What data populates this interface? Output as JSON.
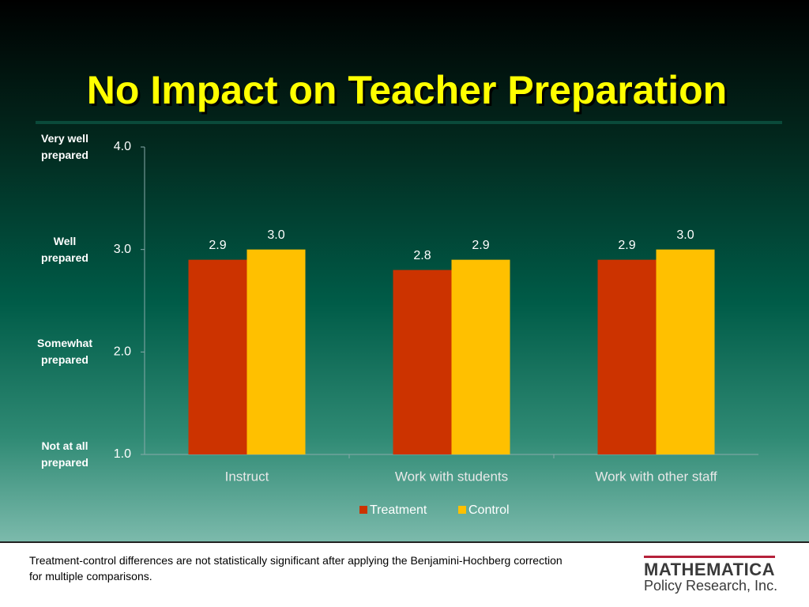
{
  "chart_data": {
    "type": "bar",
    "title": "No Impact on Teacher Preparation",
    "categories": [
      "Instruct",
      "Work with students",
      "Work with other staff"
    ],
    "series": [
      {
        "name": "Treatment",
        "color": "#cc3300",
        "values": [
          2.9,
          2.8,
          2.9
        ],
        "value_labels": [
          "2.9",
          "2.8",
          "2.9"
        ]
      },
      {
        "name": "Control",
        "color": "#ffc000",
        "values": [
          3.0,
          2.9,
          3.0
        ],
        "value_labels": [
          "3.0",
          "2.9",
          "3.0"
        ]
      }
    ],
    "ylim": [
      1,
      4
    ],
    "yticks": [
      {
        "value": 1,
        "label": "1.0"
      },
      {
        "value": 2,
        "label": "2.0"
      },
      {
        "value": 3,
        "label": "3.0"
      },
      {
        "value": 4,
        "label": "4.0"
      }
    ],
    "annotations": [
      "Not at all prepared",
      "Somewhat prepared",
      "Well prepared",
      "Very well prepared"
    ],
    "grid": false,
    "legend": "bottom"
  },
  "footer": {
    "note": "Treatment-control differences are not statistically significant  after applying the Benjamini-Hochberg correction for multiple comparisons.",
    "logo": {
      "name": "MATHEMATICA",
      "tagline": "Policy Research, Inc."
    }
  }
}
